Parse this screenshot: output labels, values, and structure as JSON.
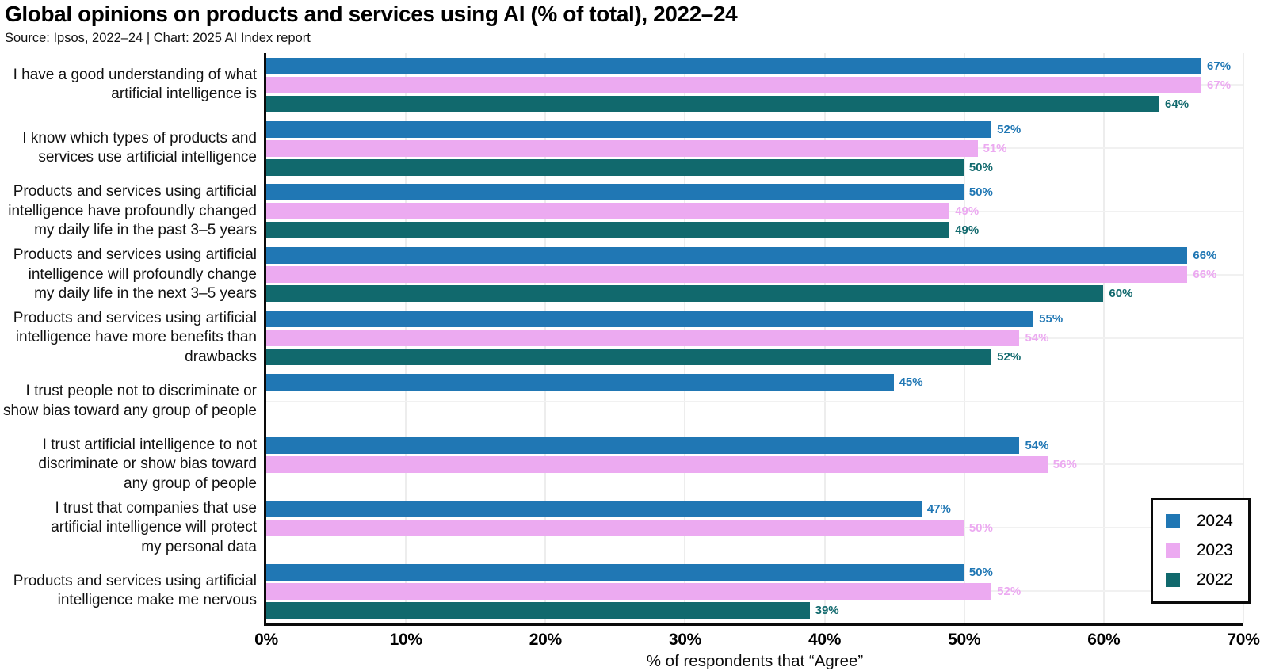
{
  "header": {
    "title": "Global opinions on products and services using AI (% of total), 2022–24",
    "subtitle": "Source: Ipsos, 2022–24 | Chart: 2025 AI Index report"
  },
  "chart_data": {
    "type": "bar",
    "orientation": "horizontal",
    "title": "Global opinions on products and services using AI (% of total), 2022–24",
    "source": "Source: Ipsos, 2022–24 | Chart: 2025 AI Index report",
    "xlabel": "% of respondents that “Agree”",
    "xlim": [
      0,
      70
    ],
    "x_tick_values": [
      0,
      10,
      20,
      30,
      40,
      50,
      60,
      70
    ],
    "x_tick_labels": [
      "0%",
      "10%",
      "20%",
      "30%",
      "40%",
      "50%",
      "60%",
      "70%"
    ],
    "grid": true,
    "legend_position": "lower right",
    "value_suffix": "%",
    "categories": [
      "I have a good understanding of what\nartificial intelligence is",
      "I know which types of products and\nservices use artificial intelligence",
      "Products and services using artificial\nintelligence have profoundly changed\nmy daily life in the past 3–5 years",
      "Products and services using artificial\nintelligence will profoundly change\nmy daily life in the next 3–5 years",
      "Products and services using artificial\nintelligence have more benefits than\ndrawbacks",
      "I trust people not to discriminate or\nshow bias toward any group of people",
      "I trust artificial intelligence to not\ndiscriminate or show bias toward\nany group of people",
      "I trust that companies that use\nartificial intelligence will protect\nmy personal data",
      "Products and services using artificial\nintelligence make me nervous"
    ],
    "series": [
      {
        "name": "2024",
        "color": "#2077B4",
        "values": [
          67,
          52,
          50,
          66,
          55,
          45,
          54,
          47,
          50
        ]
      },
      {
        "name": "2023",
        "color": "#ECAAF1",
        "values": [
          67,
          51,
          49,
          66,
          54,
          null,
          56,
          50,
          52
        ]
      },
      {
        "name": "2022",
        "color": "#11696D",
        "values": [
          64,
          50,
          49,
          60,
          52,
          null,
          null,
          null,
          39
        ]
      }
    ]
  }
}
